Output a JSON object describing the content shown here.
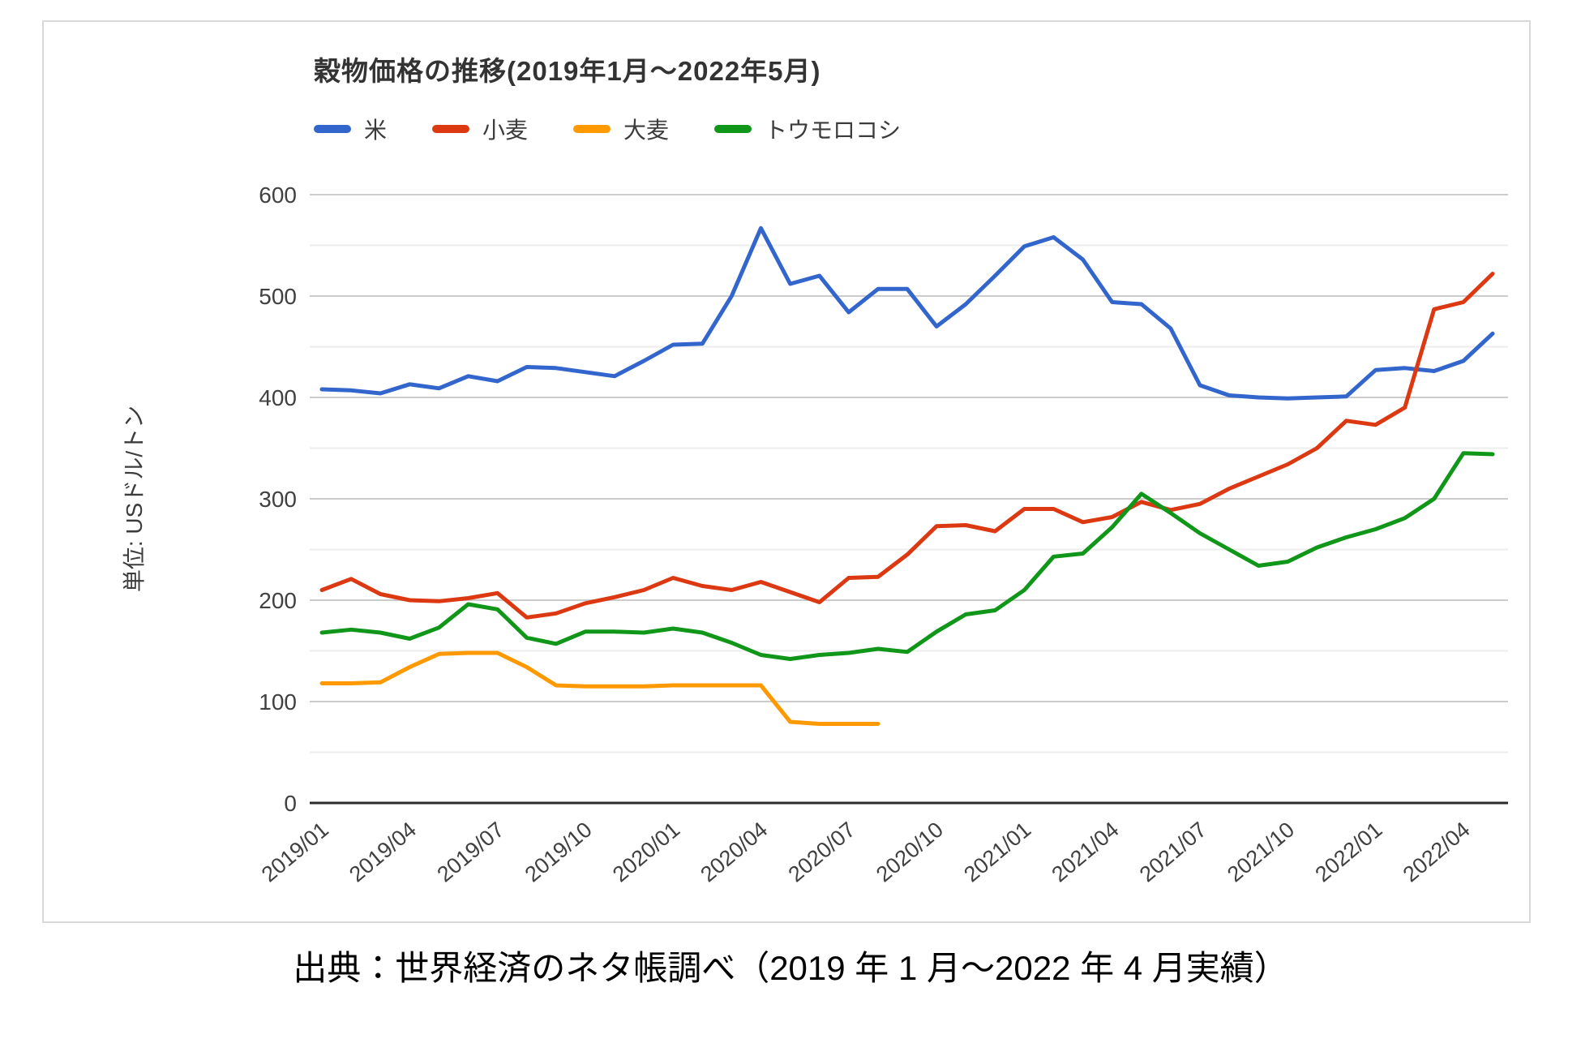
{
  "chart": {
    "title": "穀物価格の推移(2019年1月～2022年5月)",
    "y_axis_title": "単位: USドル/トン"
  },
  "caption": "出典：世界経済のネタ帳調べ（2019 年 1 月～2022 年 4 月実績）",
  "colors": {
    "rice": "#3366cc",
    "wheat": "#dc3912",
    "barley": "#ff9900",
    "corn": "#109618",
    "grid_major": "#cccccc",
    "grid_minor": "#ededed",
    "axis_baseline": "#2b2b2b",
    "axis_text": "#404040",
    "card_border": "#d9d9d9"
  },
  "chart_data": {
    "type": "line",
    "title": "穀物価格の推移(2019年1月～2022年5月)",
    "ylabel": "単位: USドル/トン",
    "ylim": [
      0,
      600
    ],
    "y_major_ticks": [
      0,
      100,
      200,
      300,
      400,
      500,
      600
    ],
    "y_minor_ticks": [
      50,
      150,
      250,
      350,
      450,
      550
    ],
    "grid": true,
    "legend_position": "top",
    "x_months": [
      "2019/01",
      "2019/02",
      "2019/03",
      "2019/04",
      "2019/05",
      "2019/06",
      "2019/07",
      "2019/08",
      "2019/09",
      "2019/10",
      "2019/11",
      "2019/12",
      "2020/01",
      "2020/02",
      "2020/03",
      "2020/04",
      "2020/05",
      "2020/06",
      "2020/07",
      "2020/08",
      "2020/09",
      "2020/10",
      "2020/11",
      "2020/12",
      "2021/01",
      "2021/02",
      "2021/03",
      "2021/04",
      "2021/05",
      "2021/06",
      "2021/07",
      "2021/08",
      "2021/09",
      "2021/10",
      "2021/11",
      "2021/12",
      "2022/01",
      "2022/02",
      "2022/03",
      "2022/04",
      "2022/05"
    ],
    "x_tick_indices": [
      0,
      3,
      6,
      9,
      12,
      15,
      18,
      21,
      24,
      27,
      30,
      33,
      36,
      39
    ],
    "x_tick_labels": [
      "2019/01",
      "2019/04",
      "2019/07",
      "2019/10",
      "2020/01",
      "2020/04",
      "2020/07",
      "2020/10",
      "2021/01",
      "2021/04",
      "2021/07",
      "2021/10",
      "2022/01",
      "2022/04"
    ],
    "series": [
      {
        "key": "rice",
        "name": "米",
        "color": "#3366cc",
        "values": [
          408,
          407,
          404,
          413,
          409,
          421,
          416,
          430,
          429,
          425,
          421,
          436,
          452,
          453,
          500,
          567,
          512,
          520,
          484,
          507,
          507,
          470,
          492,
          520,
          549,
          558,
          536,
          494,
          492,
          468,
          412,
          402,
          400,
          399,
          400,
          401,
          427,
          429,
          426,
          436,
          463
        ]
      },
      {
        "key": "wheat",
        "name": "小麦",
        "color": "#dc3912",
        "values": [
          210,
          221,
          206,
          200,
          199,
          202,
          207,
          183,
          187,
          197,
          203,
          210,
          222,
          214,
          210,
          218,
          208,
          198,
          222,
          223,
          245,
          273,
          274,
          268,
          290,
          290,
          277,
          282,
          297,
          289,
          295,
          310,
          322,
          334,
          350,
          377,
          373,
          390,
          487,
          494,
          522
        ]
      },
      {
        "key": "barley",
        "name": "大麦",
        "color": "#ff9900",
        "values": [
          118,
          118,
          119,
          134,
          147,
          148,
          148,
          134,
          116,
          115,
          115,
          115,
          116,
          116,
          116,
          116,
          80,
          78,
          78,
          78,
          null,
          null,
          null,
          null,
          null,
          null,
          null,
          null,
          null,
          null,
          null,
          null,
          null,
          null,
          null,
          null,
          null,
          null,
          null,
          null,
          null
        ]
      },
      {
        "key": "corn",
        "name": "トウモロコシ",
        "color": "#109618",
        "values": [
          168,
          171,
          168,
          162,
          173,
          196,
          191,
          163,
          157,
          169,
          169,
          168,
          172,
          168,
          158,
          146,
          142,
          146,
          148,
          152,
          149,
          169,
          186,
          190,
          210,
          243,
          246,
          272,
          305,
          286,
          266,
          250,
          234,
          238,
          252,
          262,
          270,
          281,
          300,
          345,
          344
        ]
      }
    ]
  }
}
